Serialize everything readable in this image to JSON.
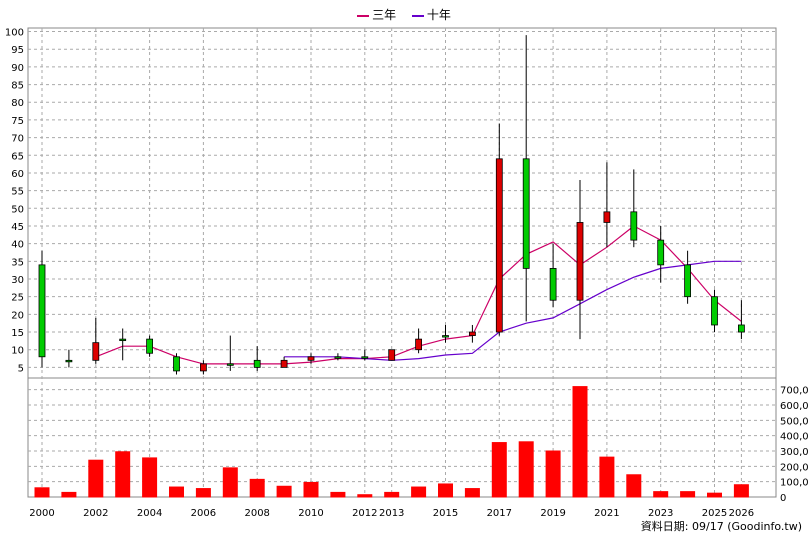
{
  "chart_data": {
    "type": "candlestick",
    "legend": [
      {
        "name": "三年",
        "color": "#cc0066"
      },
      {
        "name": "十年",
        "color": "#6600cc"
      }
    ],
    "x_tick_labels": [
      "2000",
      "2002",
      "2004",
      "2006",
      "2008",
      "2010",
      "2012",
      "2013",
      "2015",
      "2017",
      "2019",
      "2021",
      "2023",
      "2025",
      "2026"
    ],
    "price_axis": {
      "ticks": [
        5,
        10,
        15,
        20,
        25,
        30,
        35,
        40,
        45,
        50,
        55,
        60,
        65,
        70,
        75,
        80,
        85,
        90,
        95,
        100
      ],
      "ylim": [
        2,
        101
      ]
    },
    "volume_axis": {
      "tick_labels": [
        "0",
        "100,000",
        "200,000",
        "300,000",
        "400,000",
        "500,000",
        "600,000",
        "700,000"
      ],
      "ylim": [
        0,
        750000
      ]
    },
    "years": [
      2000,
      2001,
      2002,
      2003,
      2004,
      2005,
      2006,
      2007,
      2008,
      2009,
      2010,
      2011,
      2012,
      2013,
      2014,
      2015,
      2016,
      2017,
      2018,
      2019,
      2020,
      2021,
      2022,
      2023,
      2024,
      2025,
      2026
    ],
    "candles": [
      {
        "open": 8,
        "close": 34,
        "high": 38,
        "low": 5
      },
      {
        "open": 7,
        "close": 7,
        "high": 10,
        "low": 5
      },
      {
        "open": 12,
        "close": 7,
        "high": 19,
        "low": 6
      },
      {
        "open": 13,
        "close": 13,
        "high": 16,
        "low": 7
      },
      {
        "open": 9,
        "close": 13,
        "high": 14,
        "low": 8
      },
      {
        "open": 4,
        "close": 8,
        "high": 9,
        "low": 3
      },
      {
        "open": 6,
        "close": 4,
        "high": 7,
        "low": 3
      },
      {
        "open": 6,
        "close": 6,
        "high": 14,
        "low": 4
      },
      {
        "open": 5,
        "close": 7,
        "high": 11,
        "low": 4
      },
      {
        "open": 7,
        "close": 5,
        "high": 8,
        "low": 5
      },
      {
        "open": 8,
        "close": 7,
        "high": 9,
        "low": 6
      },
      {
        "open": 8,
        "close": 8,
        "high": 9,
        "low": 7
      },
      {
        "open": 8,
        "close": 8,
        "high": 10,
        "low": 7
      },
      {
        "open": 10,
        "close": 7,
        "high": 10,
        "low": 7
      },
      {
        "open": 13,
        "close": 10,
        "high": 16,
        "low": 9
      },
      {
        "open": 14,
        "close": 14,
        "high": 17,
        "low": 12
      },
      {
        "open": 15,
        "close": 14,
        "high": 17,
        "low": 12
      },
      {
        "open": 64,
        "close": 15,
        "high": 74,
        "low": 14
      },
      {
        "open": 33,
        "close": 64,
        "high": 99,
        "low": 18
      },
      {
        "open": 24,
        "close": 33,
        "high": 40,
        "low": 22
      },
      {
        "open": 46,
        "close": 24,
        "high": 58,
        "low": 13
      },
      {
        "open": 49,
        "close": 46,
        "high": 63,
        "low": 39
      },
      {
        "open": 41,
        "close": 49,
        "high": 61,
        "low": 39
      },
      {
        "open": 34,
        "close": 41,
        "high": 45,
        "low": 29
      },
      {
        "open": 25,
        "close": 34,
        "high": 38,
        "low": 23
      },
      {
        "open": 17,
        "close": 25,
        "high": 27,
        "low": 15
      },
      {
        "open": 15,
        "close": 17,
        "high": 24,
        "low": 13
      }
    ],
    "volume": [
      60000,
      30000,
      240000,
      295000,
      255000,
      65000,
      55000,
      190000,
      115000,
      70000,
      95000,
      30000,
      15000,
      30000,
      65000,
      85000,
      55000,
      355000,
      360000,
      300000,
      720000,
      260000,
      145000,
      35000,
      35000,
      25000,
      80000
    ],
    "series": [
      {
        "name": "三年",
        "values": [
          null,
          null,
          8,
          11,
          11,
          8,
          6,
          6,
          6,
          6,
          6.5,
          7.5,
          7.5,
          8,
          11,
          13,
          14,
          30,
          37,
          40.5,
          34,
          39,
          45,
          41,
          33,
          24,
          18
        ]
      },
      {
        "name": "十年",
        "values": [
          null,
          null,
          null,
          null,
          null,
          null,
          null,
          null,
          null,
          8,
          8,
          8,
          7.5,
          7,
          7.5,
          8.5,
          9,
          15,
          17.5,
          19,
          23,
          27,
          30.5,
          33,
          34,
          35,
          35
        ]
      }
    ]
  },
  "source_note": "資料日期: 09/17  (Goodinfo.tw)"
}
